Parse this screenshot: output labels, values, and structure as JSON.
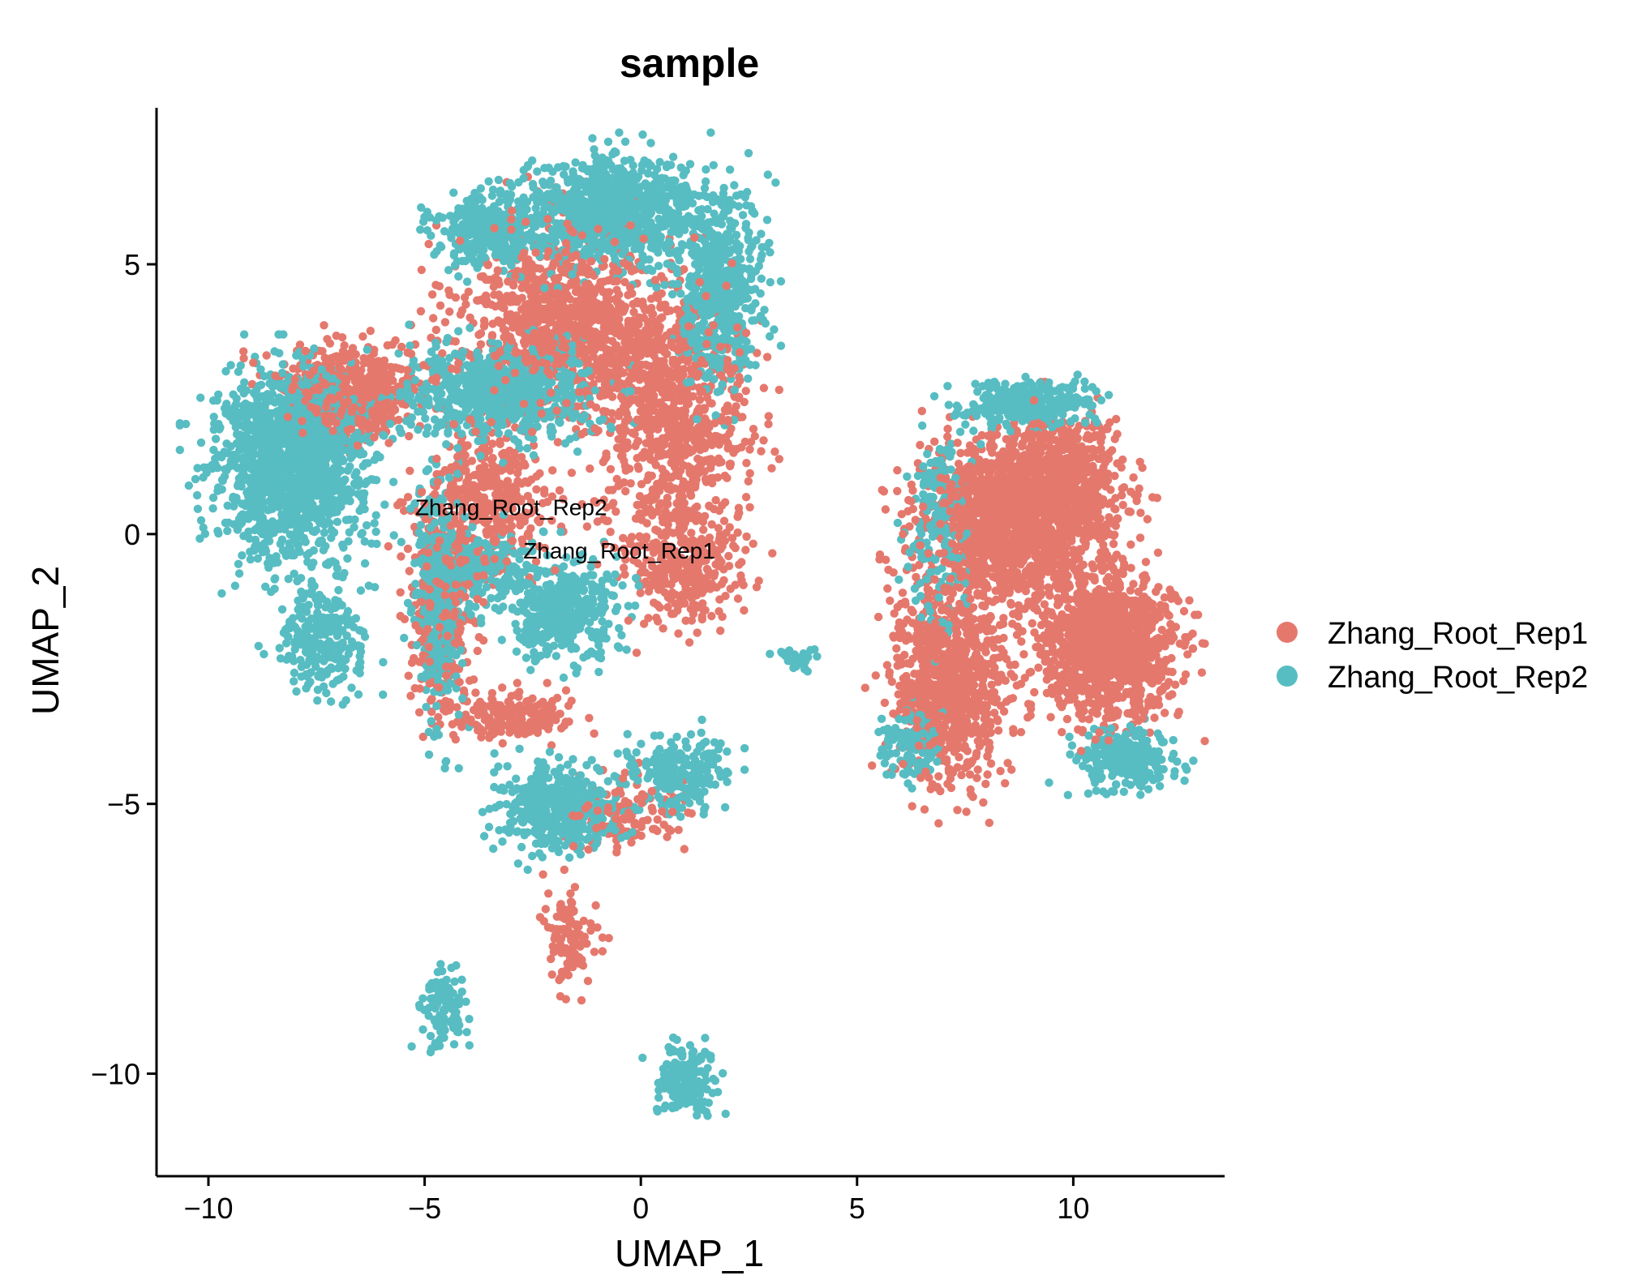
{
  "chart_data": {
    "type": "scatter",
    "title": "sample",
    "xlabel": "UMAP_1",
    "ylabel": "UMAP_2",
    "xlim": [
      -11.2,
      13.5
    ],
    "ylim": [
      -11.9,
      7.9
    ],
    "xticks": [
      {
        "value": -10,
        "label": "−10"
      },
      {
        "value": -5,
        "label": "−5"
      },
      {
        "value": 0,
        "label": "0"
      },
      {
        "value": 5,
        "label": "5"
      },
      {
        "value": 10,
        "label": "10"
      }
    ],
    "yticks": [
      {
        "value": -10,
        "label": "−10"
      },
      {
        "value": -5,
        "label": "−5"
      },
      {
        "value": 0,
        "label": "0"
      },
      {
        "value": 5,
        "label": "5"
      }
    ],
    "grid": false,
    "legend_position": "right",
    "series": [
      {
        "name": "Zhang_Root_Rep1",
        "color": "#E5786D",
        "clusters": [
          {
            "cx": -1.8,
            "cy": 3.9,
            "rx": 2.2,
            "ry": 1.7,
            "n": 900
          },
          {
            "cx": 0.8,
            "cy": 2.2,
            "rx": 1.5,
            "ry": 2.2,
            "n": 700
          },
          {
            "cx": -6.8,
            "cy": 2.6,
            "rx": 1.6,
            "ry": 0.9,
            "n": 400
          },
          {
            "cx": -3.6,
            "cy": 0.5,
            "rx": 1.4,
            "ry": 1.3,
            "n": 350
          },
          {
            "cx": -4.6,
            "cy": -1.6,
            "rx": 0.6,
            "ry": 1.6,
            "n": 250
          },
          {
            "cx": 1.0,
            "cy": -0.6,
            "rx": 1.2,
            "ry": 1.0,
            "n": 250
          },
          {
            "cx": -3.0,
            "cy": -3.4,
            "rx": 1.2,
            "ry": 0.4,
            "n": 150
          },
          {
            "cx": 8.4,
            "cy": 0.2,
            "rx": 1.8,
            "ry": 1.3,
            "n": 1100
          },
          {
            "cx": 10.8,
            "cy": -2.1,
            "rx": 1.4,
            "ry": 1.2,
            "n": 900
          },
          {
            "cx": 7.1,
            "cy": -2.8,
            "rx": 1.2,
            "ry": 1.6,
            "n": 700
          },
          {
            "cx": 9.7,
            "cy": 0.9,
            "rx": 1.4,
            "ry": 1.2,
            "n": 500
          },
          {
            "cx": -0.6,
            "cy": -5.2,
            "rx": 1.4,
            "ry": 0.6,
            "n": 120
          },
          {
            "cx": -1.7,
            "cy": -7.5,
            "rx": 0.6,
            "ry": 0.8,
            "n": 90
          }
        ]
      },
      {
        "name": "Zhang_Root_Rep2",
        "color": "#57BDC2",
        "clusters": [
          {
            "cx": -8.1,
            "cy": 1.3,
            "rx": 1.6,
            "ry": 1.5,
            "n": 1400
          },
          {
            "cx": -7.4,
            "cy": -1.9,
            "rx": 0.9,
            "ry": 0.9,
            "n": 250
          },
          {
            "cx": -0.7,
            "cy": 6.0,
            "rx": 2.0,
            "ry": 0.9,
            "n": 900
          },
          {
            "cx": 1.8,
            "cy": 4.5,
            "rx": 0.9,
            "ry": 1.6,
            "n": 500
          },
          {
            "cx": -3.6,
            "cy": 5.6,
            "rx": 1.1,
            "ry": 0.6,
            "n": 300
          },
          {
            "cx": -3.2,
            "cy": 2.6,
            "rx": 1.9,
            "ry": 0.8,
            "n": 700
          },
          {
            "cx": -4.7,
            "cy": -1.3,
            "rx": 0.5,
            "ry": 1.9,
            "n": 350
          },
          {
            "cx": -1.8,
            "cy": -1.4,
            "rx": 1.2,
            "ry": 0.9,
            "n": 400
          },
          {
            "cx": -3.7,
            "cy": -0.6,
            "rx": 0.9,
            "ry": 0.6,
            "n": 180
          },
          {
            "cx": -1.9,
            "cy": -5.1,
            "rx": 1.3,
            "ry": 0.7,
            "n": 450
          },
          {
            "cx": 0.8,
            "cy": -4.4,
            "rx": 1.0,
            "ry": 0.6,
            "n": 220
          },
          {
            "cx": 1.0,
            "cy": -10.1,
            "rx": 0.6,
            "ry": 0.6,
            "n": 180
          },
          {
            "cx": -4.5,
            "cy": -8.8,
            "rx": 0.5,
            "ry": 0.6,
            "n": 100
          },
          {
            "cx": 8.9,
            "cy": 2.4,
            "rx": 1.2,
            "ry": 0.35,
            "n": 350
          },
          {
            "cx": 6.9,
            "cy": 0.2,
            "rx": 0.6,
            "ry": 1.6,
            "n": 180
          },
          {
            "cx": 11.2,
            "cy": -4.2,
            "rx": 1.1,
            "ry": 0.5,
            "n": 250
          },
          {
            "cx": 6.2,
            "cy": -3.9,
            "rx": 0.6,
            "ry": 0.6,
            "n": 120
          },
          {
            "cx": 3.6,
            "cy": -2.3,
            "rx": 0.5,
            "ry": 0.2,
            "n": 30
          }
        ]
      }
    ],
    "annotations": [
      {
        "text": "Zhang_Root_Rep2",
        "x": -3.0,
        "y": 0.35
      },
      {
        "text": "Zhang_Root_Rep1",
        "x": -0.5,
        "y": -0.45
      }
    ]
  }
}
